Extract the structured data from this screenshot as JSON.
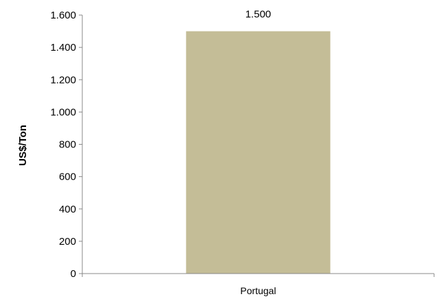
{
  "chart_data": {
    "type": "bar",
    "categories": [
      "Portugal"
    ],
    "values": [
      1500
    ],
    "value_labels": [
      "1.500"
    ],
    "ylabel": "US$/Ton",
    "xlabel": "",
    "title": "",
    "ylim": [
      0,
      1600
    ],
    "yticks": [
      0,
      200,
      400,
      600,
      800,
      1000,
      1200,
      1400,
      1600
    ],
    "ytick_labels": [
      "0",
      "200",
      "400",
      "600",
      "800",
      "1.000",
      "1.200",
      "1.400",
      "1.600"
    ],
    "grid": false,
    "legend": "none",
    "bar_color": "#C4BD97"
  }
}
